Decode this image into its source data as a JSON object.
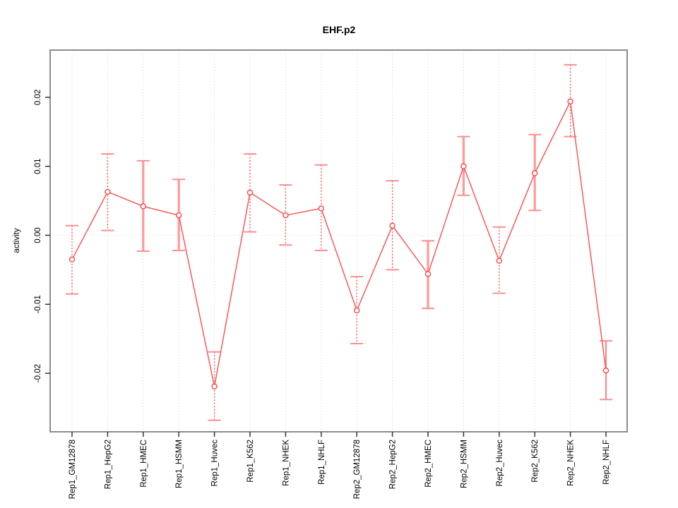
{
  "chart_data": {
    "type": "line",
    "title": "EHF.p2",
    "xlabel": "",
    "ylabel": "activity",
    "categories": [
      "Rep1_GM12878",
      "Rep1_HepG2",
      "Rep1_HMEC",
      "Rep1_HSMM",
      "Rep1_Huvec",
      "Rep1_K562",
      "Rep1_NHEK",
      "Rep1_NHLF",
      "Rep2_GM12878",
      "Rep2_HepG2",
      "Rep2_HMEC",
      "Rep2_HSMM",
      "Rep2_Huvec",
      "Rep2_K562",
      "Rep2_NHEK",
      "Rep2_NHLF"
    ],
    "series": [
      {
        "name": "activity",
        "values": [
          -0.0035,
          0.0063,
          0.0042,
          0.0029,
          -0.0219,
          0.0062,
          0.0029,
          0.0039,
          -0.0109,
          0.0014,
          -0.0056,
          0.01,
          -0.0037,
          0.009,
          0.0194,
          -0.0196
        ],
        "err_high": [
          0.0014,
          0.0118,
          0.0108,
          0.0081,
          -0.0169,
          0.0118,
          0.0073,
          0.0102,
          -0.006,
          0.0079,
          -0.0008,
          0.0143,
          0.0012,
          0.0146,
          0.0247,
          -0.0153
        ],
        "err_low": [
          -0.0085,
          0.0007,
          -0.0023,
          -0.0022,
          -0.0268,
          0.0005,
          -0.0014,
          -0.0022,
          -0.0157,
          -0.005,
          -0.0106,
          0.0058,
          -0.0084,
          0.0036,
          0.0143,
          -0.0238
        ],
        "bar_styles": [
          "dotted",
          "dotted",
          "thick",
          "thick",
          "dotted",
          "dotted",
          "dotted",
          "dotted",
          "dotted",
          "dotted",
          "thick",
          "thick",
          "dotted",
          "thick",
          "dotted",
          "solid"
        ]
      }
    ],
    "ylim": [
      -0.0285,
      0.0268
    ],
    "yticks": [
      -0.02,
      -0.01,
      0,
      0.01,
      0.02
    ],
    "ytick_labels": [
      "-0.02",
      "-0.01",
      "0.00",
      "0.01",
      "0.02"
    ],
    "grid": {
      "vertical": "dotted line at every category",
      "horizontal": "dotted line at zero only"
    },
    "legend": "none",
    "colors": {
      "line": "#ff4d4d",
      "point_stroke": "#ff3838",
      "bar_dotted": "#ff5050",
      "bar_thick": "#ff9a9a",
      "bar_solid": "#ff8080",
      "cap": "#ff8e8e",
      "box_border": "#8c8c8c",
      "grid_v": "#d2d2d2",
      "grid_zero": "#dedede",
      "tick": "#333333",
      "text": "#000000"
    }
  }
}
